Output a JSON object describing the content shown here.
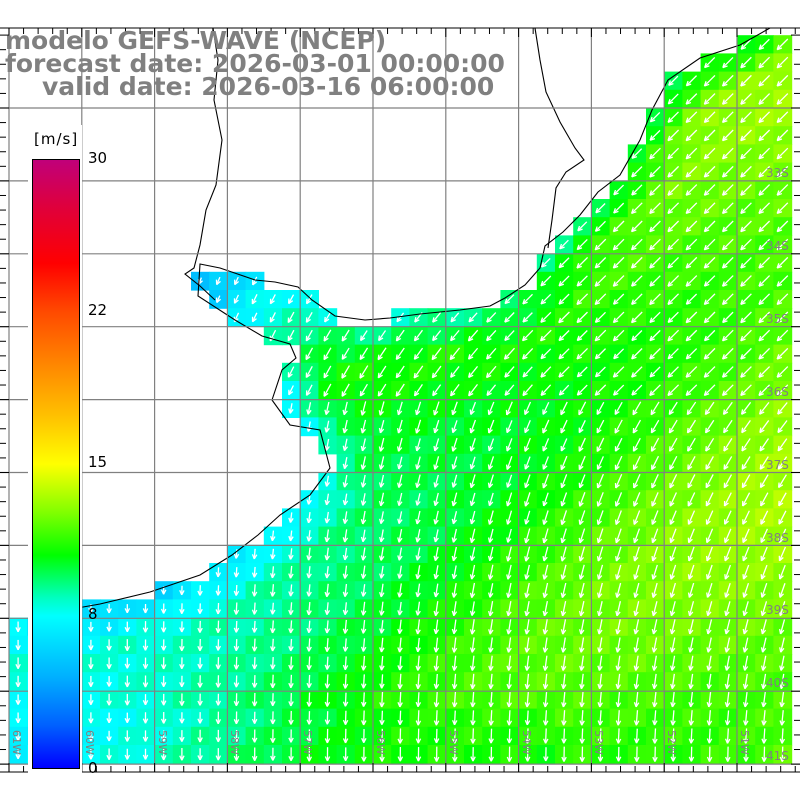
{
  "title": {
    "line1": "modelo GEFS-WAVE (NCEP)",
    "line2": "forecast date: 2026-03-01 00:00:00",
    "line3": "valid date: 2026-03-16 06:00:00"
  },
  "colorbar": {
    "units": "[m/s]",
    "labels": [
      "30",
      "22",
      "15",
      "8",
      "0"
    ],
    "colors": {
      "max": "#c0007a",
      "red": "#ff0000",
      "yellow": "#ffff00",
      "green": "#00ff00",
      "cyan": "#00ffff",
      "min": "#0000ff"
    }
  },
  "axes": {
    "lon_labels": [
      "61W",
      "60W",
      "59W",
      "58W",
      "57W",
      "56W",
      "55W",
      "54W",
      "53W",
      "52W",
      "51W"
    ],
    "lat_labels": [
      "33S",
      "34S",
      "35S",
      "36S",
      "37S",
      "38S",
      "39S",
      "40S",
      "41S"
    ]
  },
  "colors": {
    "title": "#808080",
    "grid": "#808080",
    "coast": "#000000",
    "arrow": "#ffffff"
  }
}
